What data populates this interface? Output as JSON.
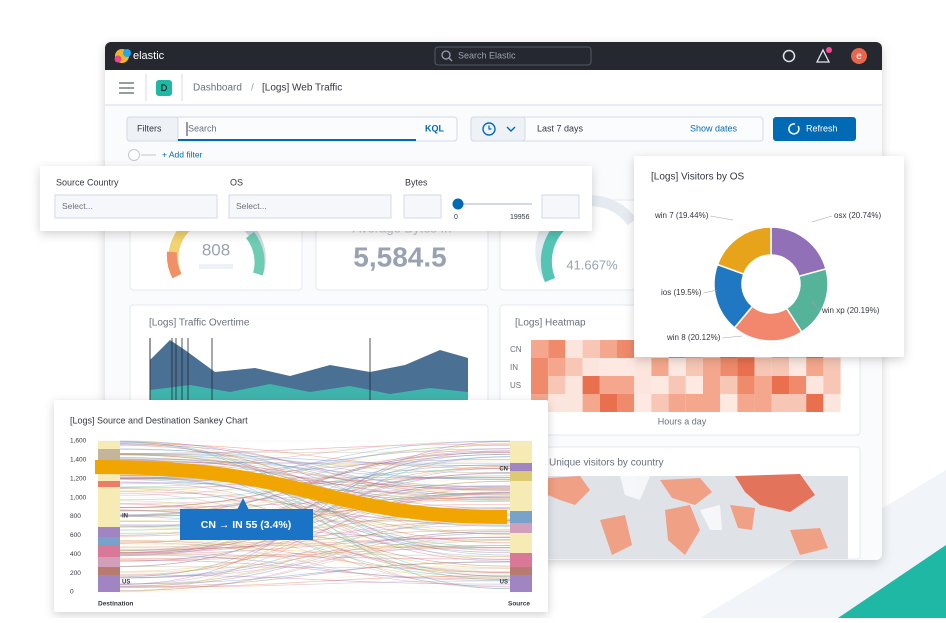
{
  "topbar": {
    "brand": "elastic",
    "search": "Search Elastic",
    "avatar": "e"
  },
  "breadcrumb": {
    "app_badge": "D",
    "parent": "Dashboard",
    "separator": "/",
    "current": "[Logs] Web Traffic"
  },
  "query_bar": {
    "filters": "Filters",
    "search_placeholder": "Search",
    "language": "KQL",
    "time_range": "Last 7 days",
    "show_dates": "Show dates",
    "refresh": "Refresh",
    "add_filter": "+ Add filter"
  },
  "controls": {
    "fields": [
      {
        "label": "Source Country",
        "placeholder": "Select..."
      },
      {
        "label": "OS",
        "placeholder": "Select..."
      }
    ],
    "bytes": {
      "label": "Bytes",
      "min": "0",
      "max": "19956"
    }
  },
  "metrics": {
    "gauge_value": "808",
    "average_title": "Average Bytes In",
    "average_value": "5,584.5",
    "gauge_percent": "41.667%"
  },
  "traffic_overtime": {
    "title": "[Logs] Traffic Overtime"
  },
  "heatmap": {
    "title": "[Logs] Heatmap",
    "rows": [
      "CN",
      "IN",
      "US"
    ],
    "x_axis_label": "Hours a day"
  },
  "unique_visitors": {
    "title": "Unique visitors by country"
  },
  "chart_data": {
    "type": "pie",
    "title": "[Logs] Visitors by OS",
    "categories": [
      "osx (20.74%)",
      "win xp (20.19%)",
      "win 8 (20.12%)",
      "ios (19.5%)",
      "win 7 (19.44%)"
    ],
    "values": [
      20.74,
      20.19,
      20.12,
      19.5,
      19.44
    ],
    "colors": [
      "#9170b8",
      "#54b399",
      "#f3876d",
      "#1f78c1",
      "#e7a41b"
    ],
    "donut": true
  },
  "sankey": {
    "title": "[Logs] Source and Destination Sankey Chart",
    "yticks": [
      0,
      200,
      400,
      600,
      800,
      {
        "value": 1000,
        "label": "1,000"
      },
      {
        "value": 1200,
        "label": "1,200"
      },
      {
        "value": 1400,
        "label": "1,400"
      },
      {
        "value": 1600,
        "label": "1,600"
      }
    ],
    "ylim": [
      0,
      1600
    ],
    "left_axis_label": "Destination",
    "right_axis_label": "Source",
    "left_nodes": [
      "IN",
      "US"
    ],
    "right_nodes": [
      "CN",
      "US"
    ],
    "tooltip": "CN → IN 55 (3.4%)"
  }
}
